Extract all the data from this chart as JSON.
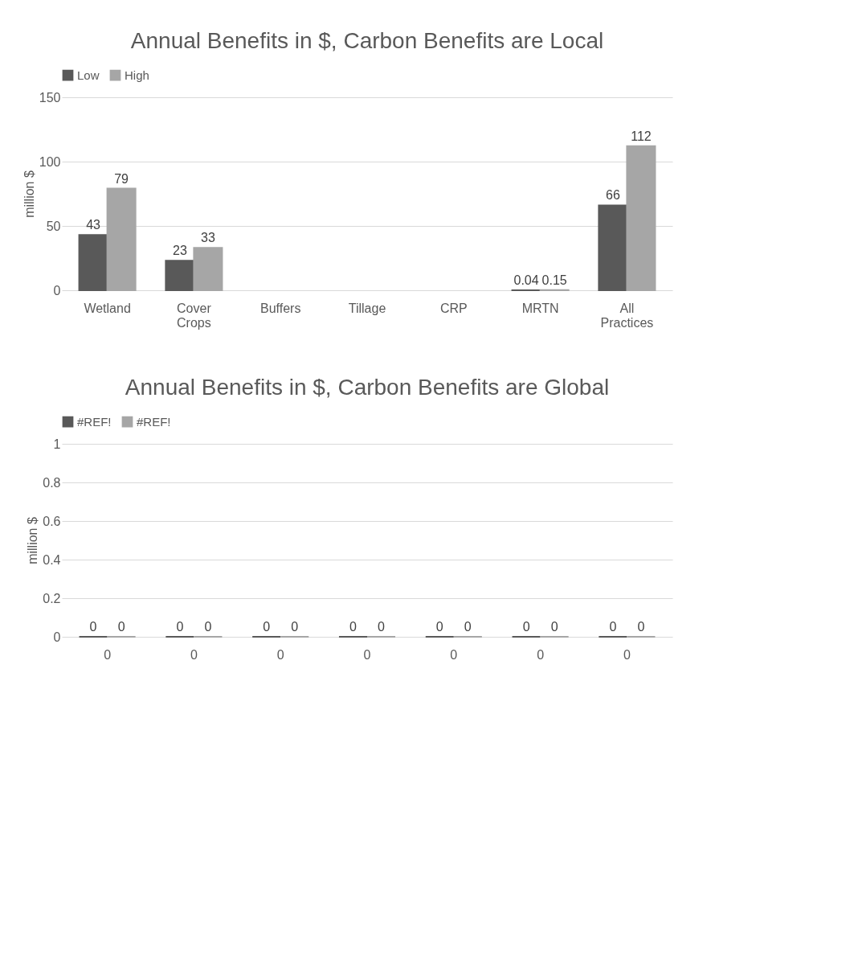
{
  "chart_data": [
    {
      "type": "bar",
      "title": "Annual Benefits in $, Carbon Benefits are Local",
      "ylabel": "million $",
      "categories": [
        "Wetland",
        "Cover Crops",
        "Buffers",
        "Tillage",
        "CRP",
        "MRTN",
        "All Practices"
      ],
      "series": [
        {
          "name": "Low",
          "color": "#595959",
          "values": [
            43,
            23,
            null,
            null,
            null,
            0.04,
            66
          ]
        },
        {
          "name": "High",
          "color": "#a6a6a6",
          "values": [
            79,
            33,
            null,
            null,
            null,
            0.15,
            112
          ]
        }
      ],
      "ylim": [
        0,
        150
      ],
      "yticks": [
        0,
        50,
        100,
        150
      ],
      "grid": "y",
      "legend": "top",
      "data_labels": true
    },
    {
      "type": "bar",
      "title": "Annual Benefits in $, Carbon Benefits are Global",
      "ylabel": "million $",
      "categories": [
        "0",
        "0",
        "0",
        "0",
        "0",
        "0",
        "0"
      ],
      "series": [
        {
          "name": "#REF!",
          "color": "#595959",
          "values": [
            0,
            0,
            0,
            0,
            0,
            0,
            0
          ]
        },
        {
          "name": "#REF!",
          "color": "#a6a6a6",
          "values": [
            0,
            0,
            0,
            0,
            0,
            0,
            0
          ]
        }
      ],
      "ylim": [
        0,
        1
      ],
      "yticks": [
        0,
        0.2,
        0.4,
        0.6,
        0.8,
        1
      ],
      "grid": "y",
      "legend": "top",
      "data_labels": true
    }
  ]
}
